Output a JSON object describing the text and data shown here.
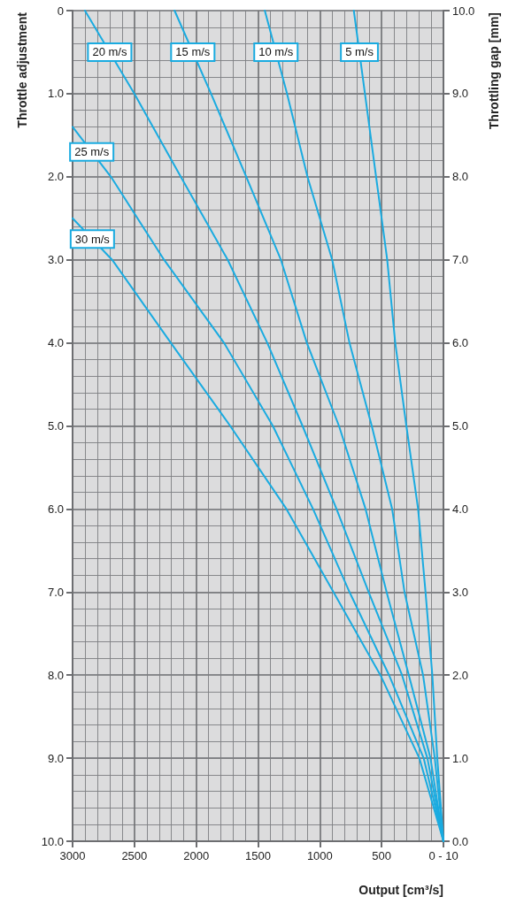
{
  "chart_data": {
    "type": "line",
    "xlabel": "Output [cm³/s]",
    "ylabel": "Throttle adjustment",
    "y2label": "Throttling gap [mm]",
    "xlim": [
      3000,
      0
    ],
    "xticks": [
      3000,
      2500,
      2000,
      1500,
      1000,
      500,
      {
        "value": 0,
        "label": "0 - 10"
      }
    ],
    "ylim": [
      10,
      0
    ],
    "yticks": [
      {
        "value": 10,
        "label": "10.0"
      },
      {
        "value": 9,
        "label": "9.0"
      },
      {
        "value": 8,
        "label": "8.0"
      },
      {
        "value": 7,
        "label": "7.0"
      },
      {
        "value": 6,
        "label": "6.0"
      },
      {
        "value": 5,
        "label": "5.0"
      },
      {
        "value": 4,
        "label": "4.0"
      },
      {
        "value": 3,
        "label": "3.0"
      },
      {
        "value": 2,
        "label": "2.0"
      },
      {
        "value": 1,
        "label": "1.0"
      },
      0
    ],
    "y2lim": [
      0,
      10
    ],
    "y2ticks": [
      {
        "value": 0,
        "label": "0.0"
      },
      {
        "value": 1,
        "label": "1.0"
      },
      {
        "value": 2,
        "label": "2.0"
      },
      {
        "value": 3,
        "label": "3.0"
      },
      {
        "value": 4,
        "label": "4.0"
      },
      {
        "value": 5,
        "label": "5.0"
      },
      {
        "value": 6,
        "label": "6.0"
      },
      {
        "value": 7,
        "label": "7.0"
      },
      {
        "value": 8,
        "label": "8.0"
      },
      {
        "value": 9,
        "label": "9.0"
      },
      {
        "value": 10,
        "label": "10.0"
      }
    ],
    "grid": true,
    "marker": "none",
    "line_style": "solid",
    "series": [
      {
        "name": "5 m/s",
        "color": "#1aabe0",
        "axis": "y2",
        "x": [
          0,
          50,
          90,
          145,
          205,
          300,
          390,
          455,
          545,
          635,
          725
        ],
        "values": [
          0,
          1,
          2,
          3,
          4,
          5,
          6,
          7,
          8,
          9,
          10
        ]
      },
      {
        "name": "10 m/s",
        "color": "#1aabe0",
        "axis": "y2",
        "x": [
          0,
          70,
          165,
          315,
          415,
          580,
          760,
          900,
          1100,
          1265,
          1445
        ],
        "values": [
          0,
          1,
          2,
          3,
          4,
          5,
          6,
          7,
          8,
          9,
          10
        ]
      },
      {
        "name": "15 m/s",
        "color": "#1aabe0",
        "axis": "y2",
        "x": [
          0,
          105,
          280,
          460,
          630,
          845,
          1105,
          1315,
          1595,
          1880,
          2175
        ],
        "values": [
          0,
          1,
          2,
          3,
          4,
          5,
          6,
          7,
          8,
          9,
          10
        ]
      },
      {
        "name": "20 m/s",
        "color": "#1aabe0",
        "axis": "y2",
        "x": [
          0,
          130,
          335,
          605,
          865,
          1140,
          1425,
          1745,
          2125,
          2500,
          2900
        ],
        "values": [
          0,
          1,
          2,
          3,
          4,
          5,
          6,
          7,
          8,
          9,
          10
        ]
      },
      {
        "name": "25 m/s",
        "color": "#1aabe0",
        "axis": "y2",
        "x": [
          0,
          160,
          440,
          760,
          1055,
          1380,
          1775,
          2260,
          2690,
          3000
        ],
        "values": [
          0,
          1,
          2,
          3,
          4,
          5,
          6,
          7,
          8,
          8.6
        ]
      },
      {
        "name": "30 m/s",
        "color": "#1aabe0",
        "axis": "y2",
        "x": [
          0,
          195,
          510,
          890,
          1270,
          1725,
          2205,
          2680,
          3000
        ],
        "values": [
          0,
          1,
          2,
          3,
          4,
          5,
          6,
          7,
          7.5
        ]
      }
    ]
  }
}
